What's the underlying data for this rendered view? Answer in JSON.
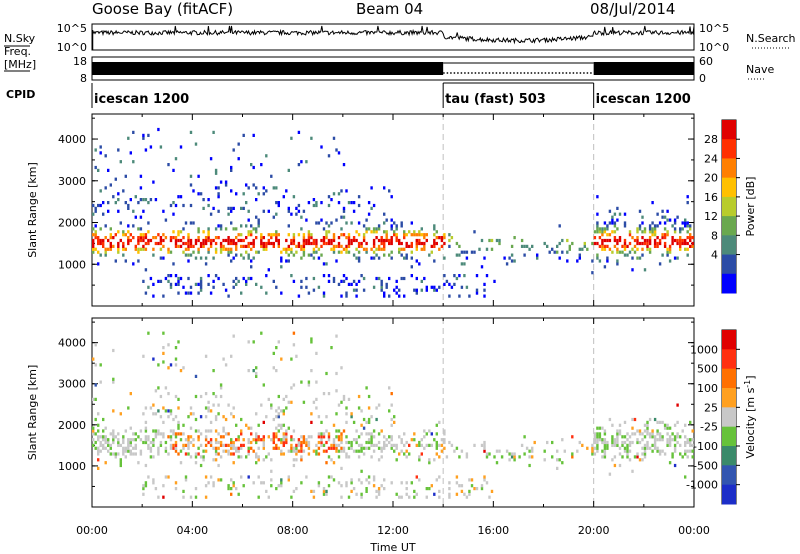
{
  "header": {
    "title": "Goose Bay (fitACF)",
    "beam": "Beam 04",
    "date": "08/Jul/2014"
  },
  "top_panels": {
    "nsky_label": "N.Sky",
    "nsky_ticks": [
      "10^5",
      "10^0"
    ],
    "nsearch_label": "N.Search",
    "nsearch_ticks": [
      "10^5",
      "10^0"
    ],
    "freq_label": "Freq.",
    "freq_unit": "[MHz]",
    "freq_ticks": [
      "18",
      "8"
    ],
    "nave_label": "Nave",
    "nave_ticks": [
      "60",
      "0"
    ],
    "cpid_label": "CPID",
    "cpid_segments": [
      {
        "label": "icescan 1200",
        "start": 0,
        "end": 14
      },
      {
        "label": "tau (fast) 503",
        "start": 14,
        "end": 20
      },
      {
        "label": "icescan 1200",
        "start": 20,
        "end": 24
      }
    ]
  },
  "chart_data": [
    {
      "type": "heatmap",
      "panel": "power",
      "ylabel": "Slant Range [km]",
      "ylim": [
        0,
        4600
      ],
      "yticks": [
        1000,
        2000,
        3000,
        4000
      ],
      "xlim": [
        0,
        24
      ],
      "colorbar_label": "Power [dB]",
      "colorbar_ticks": [
        "28",
        "24",
        "20",
        "16",
        "12",
        "8",
        "4"
      ],
      "colors": [
        "#0000ff",
        "#2c4ca6",
        "#4d8a7a",
        "#6aa84f",
        "#b8cc2c",
        "#ffc000",
        "#ff7f00",
        "#ff3000",
        "#e00000"
      ]
    },
    {
      "type": "heatmap",
      "panel": "velocity",
      "ylabel": "Slant Range [km]",
      "ylim": [
        0,
        4600
      ],
      "yticks": [
        1000,
        2000,
        3000,
        4000
      ],
      "xlim": [
        0,
        24
      ],
      "xlabel": "Time UT",
      "xticks": [
        "00:00",
        "04:00",
        "08:00",
        "12:00",
        "16:00",
        "20:00",
        "00:00"
      ],
      "colorbar_label": "Velocity [m s",
      "colorbar_label_sup": "-1",
      "colorbar_label_end": "]",
      "colorbar_ticks": [
        "1000",
        "500",
        "100",
        "25",
        "-25",
        "-100",
        "-500",
        "-1000"
      ],
      "colors": [
        "#1c2ec8",
        "#3255b0",
        "#3a8a6a",
        "#66c23a",
        "#c8c8c8",
        "#ffa020",
        "#ff7000",
        "#ff3010",
        "#e00000"
      ]
    }
  ]
}
